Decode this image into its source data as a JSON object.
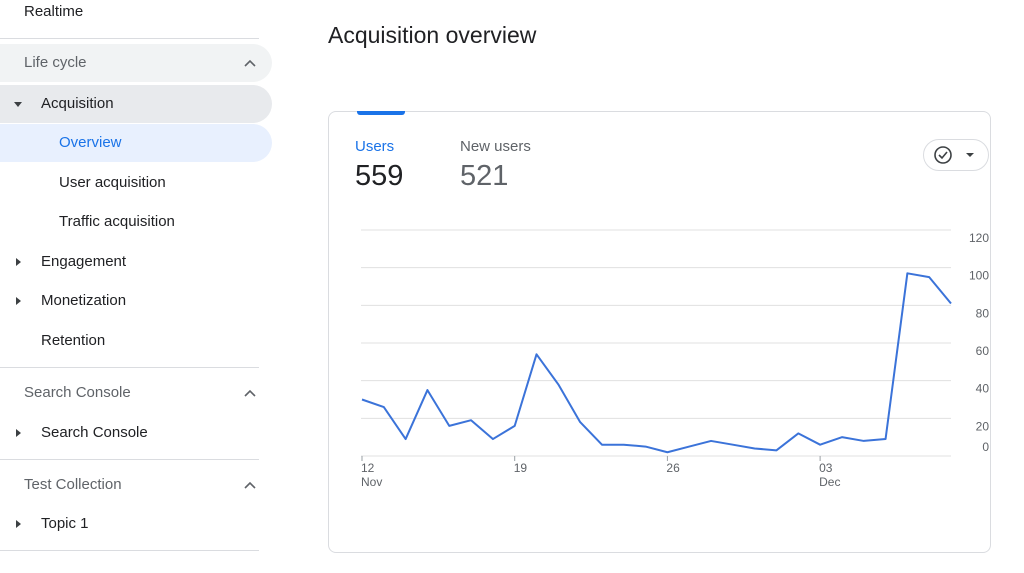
{
  "nav": {
    "realtime": "Realtime",
    "lifecycle": {
      "title": "Life cycle",
      "acquisition": "Acquisition",
      "overview": "Overview",
      "user_acquisition": "User acquisition",
      "traffic_acquisition": "Traffic acquisition",
      "engagement": "Engagement",
      "monetization": "Monetization",
      "retention": "Retention"
    },
    "search_console": {
      "title": "Search Console",
      "item": "Search Console"
    },
    "test_collection": {
      "title": "Test Collection",
      "item": "Topic 1"
    }
  },
  "page_title": "Acquisition overview",
  "metrics": [
    {
      "label": "Users",
      "value": "559"
    },
    {
      "label": "New users",
      "value": "521"
    }
  ],
  "chart_data": {
    "type": "line",
    "categories": [
      "12",
      null,
      null,
      null,
      null,
      null,
      null,
      "19",
      null,
      null,
      null,
      null,
      null,
      null,
      "26",
      null,
      null,
      null,
      null,
      null,
      null,
      "03",
      null,
      null,
      null,
      null,
      null,
      null
    ],
    "category_sublabels": [
      "Nov",
      null,
      null,
      null,
      null,
      null,
      null,
      null,
      null,
      null,
      null,
      null,
      null,
      null,
      null,
      null,
      null,
      null,
      null,
      null,
      null,
      "Dec",
      null,
      null,
      null,
      null,
      null,
      null
    ],
    "series": [
      {
        "name": "Users",
        "color": "#3b73d9",
        "values": [
          30,
          26,
          9,
          35,
          16,
          19,
          9,
          16,
          54,
          38,
          18,
          6,
          6,
          5,
          2,
          5,
          8,
          6,
          4,
          3,
          12,
          6,
          10,
          8,
          9,
          97,
          95,
          81
        ]
      }
    ],
    "ylim": [
      0,
      120
    ],
    "yticks": [
      0,
      20,
      40,
      60,
      80,
      100,
      120
    ],
    "grid": true
  }
}
